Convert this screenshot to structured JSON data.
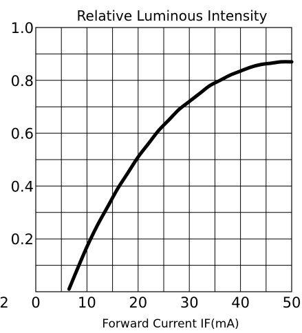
{
  "chart_data": {
    "type": "line",
    "title": "Relative Luminous Intensity",
    "xlabel": "Forward Current IF(mA)",
    "ylabel": "",
    "xlim": [
      0,
      50
    ],
    "ylim": [
      0,
      1.0
    ],
    "x_ticks": [
      0,
      10,
      20,
      30,
      40,
      50
    ],
    "x_tick_labels": [
      "0",
      "10",
      "20",
      "30",
      "40",
      "50"
    ],
    "y_ticks": [
      0.2,
      0.4,
      0.6,
      0.8,
      1.0
    ],
    "y_tick_labels": [
      "0.2",
      "0.4",
      "0.6",
      "0.8",
      "1.0"
    ],
    "extra_tick_label": "2",
    "grid": true,
    "series": [
      {
        "color": "#111111",
        "x": [
          6.5,
          8,
          10,
          12,
          14,
          16,
          18,
          20,
          22,
          24,
          26,
          28,
          30,
          32,
          34,
          36,
          38,
          40,
          42,
          44,
          46,
          48,
          50
        ],
        "y": [
          0.01,
          0.08,
          0.17,
          0.25,
          0.32,
          0.39,
          0.45,
          0.51,
          0.56,
          0.61,
          0.65,
          0.69,
          0.72,
          0.75,
          0.78,
          0.8,
          0.82,
          0.835,
          0.85,
          0.86,
          0.865,
          0.87,
          0.87
        ]
      }
    ]
  }
}
